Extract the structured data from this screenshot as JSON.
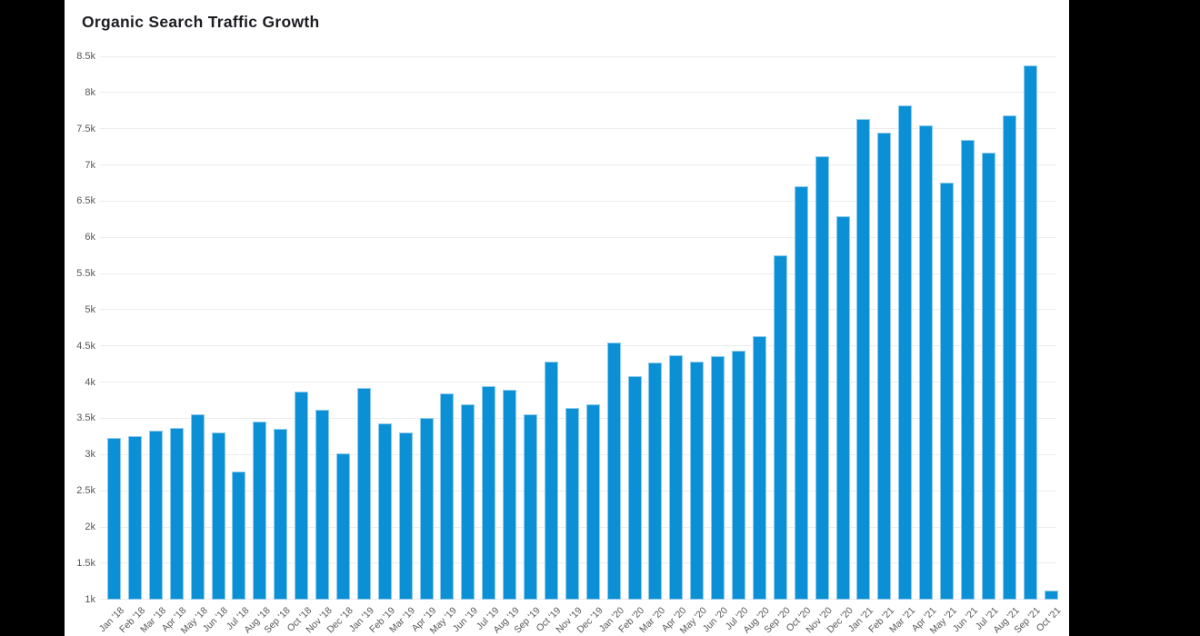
{
  "page": {
    "background": "#000000",
    "panel_background": "#ffffff"
  },
  "chart_data": {
    "type": "bar",
    "title": "Organic Search Traffic Growth",
    "categories": [
      "Jan '18",
      "Feb '18",
      "Mar '18",
      "Apr '18",
      "May '18",
      "Jun '18",
      "Jul '18",
      "Aug '18",
      "Sep '18",
      "Oct '18",
      "Nov '18",
      "Dec '18",
      "Jan '19",
      "Feb '19",
      "Mar '19",
      "Apr '19",
      "May '19",
      "Jun '19",
      "Jul '19",
      "Aug '19",
      "Sep '19",
      "Oct '19",
      "Nov '19",
      "Dec '19",
      "Jan '20",
      "Feb '20",
      "Mar '20",
      "Apr '20",
      "May '20",
      "Jun '20",
      "Jul '20",
      "Aug '20",
      "Sep '20",
      "Oct '20",
      "Nov '20",
      "Dec '20",
      "Jan '21",
      "Feb '21",
      "Mar '21",
      "Apr '21",
      "May '21",
      "Jun '21",
      "Jul '21",
      "Aug '21",
      "Sep '21",
      "Oct '21"
    ],
    "values": [
      3230,
      3260,
      3330,
      3370,
      3550,
      3310,
      2760,
      3450,
      3360,
      3870,
      3620,
      3020,
      3920,
      3430,
      3310,
      3510,
      3850,
      3700,
      3940,
      3890,
      3560,
      4290,
      3650,
      3700,
      4550,
      4080,
      4270,
      4370,
      4290,
      4360,
      4440,
      4640,
      5750,
      6700,
      7120,
      6290,
      7640,
      7440,
      7820,
      7550,
      6750,
      7340,
      7170,
      7680,
      8380,
      1120
    ],
    "xlabel": "",
    "ylabel": "",
    "ylim": [
      1000,
      8500
    ],
    "y_tick_step": 500,
    "y_tick_labels": [
      "1k",
      "1.5k",
      "2k",
      "2.5k",
      "3k",
      "3.5k",
      "4k",
      "4.5k",
      "5k",
      "5.5k",
      "6k",
      "6.5k",
      "7k",
      "7.5k",
      "8k",
      "8.5k"
    ],
    "grid": "horizontal",
    "legend": "none",
    "bar_color": "#0b90d5",
    "bar_edge_color": "#8ecbee",
    "grid_color": "#ececec",
    "label_color": "#55575a",
    "title_color": "#1c1c22"
  }
}
